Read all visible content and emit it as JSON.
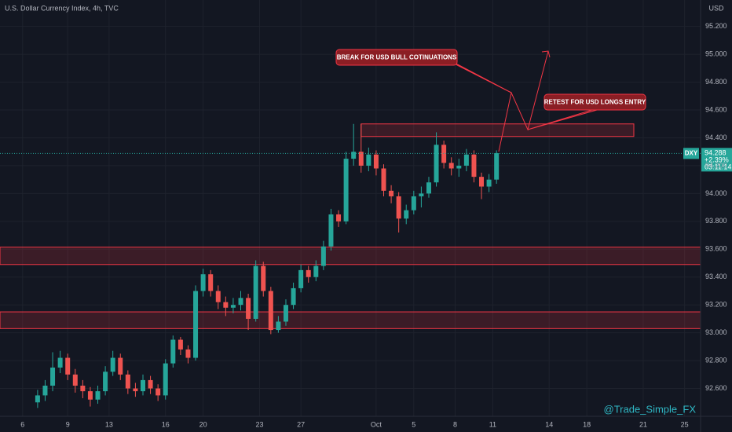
{
  "chart_data": {
    "type": "candlestick",
    "title": "U.S. Dollar Currency Index, 4h, TVC",
    "currency": "USD",
    "symbol": "DXY",
    "last_price": {
      "value": 94.288,
      "label": "94.288"
    },
    "change_label": "+2.39%",
    "countdown": "03:11:14",
    "watermark": "@Trade_Simple_FX",
    "up_color": "#26a69a",
    "down_color": "#ef5350",
    "zone_color": "#f23645",
    "grid": true,
    "ylim": [
      92.4,
      95.39
    ],
    "xlim": [
      0,
      186.25
    ],
    "yticks": [
      {
        "value": 95.2,
        "label": "95.200"
      },
      {
        "value": 95.0,
        "label": "95.000"
      },
      {
        "value": 94.8,
        "label": "94.800"
      },
      {
        "value": 94.6,
        "label": "94.600"
      },
      {
        "value": 94.4,
        "label": "94.400"
      },
      {
        "value": 94.2,
        "label": "94.200"
      },
      {
        "value": 94.0,
        "label": "94.000"
      },
      {
        "value": 93.8,
        "label": "93.800"
      },
      {
        "value": 93.6,
        "label": "93.600"
      },
      {
        "value": 93.4,
        "label": "93.400"
      },
      {
        "value": 93.2,
        "label": "93.200"
      },
      {
        "value": 93.0,
        "label": "93.000"
      },
      {
        "value": 92.8,
        "label": "92.800"
      },
      {
        "value": 92.6,
        "label": "92.600"
      }
    ],
    "xticks": [
      {
        "value": 6,
        "label": "6"
      },
      {
        "value": 18,
        "label": "9"
      },
      {
        "value": 29,
        "label": "13"
      },
      {
        "value": 44,
        "label": "16"
      },
      {
        "value": 54,
        "label": "20"
      },
      {
        "value": 69,
        "label": "23"
      },
      {
        "value": 80,
        "label": "27"
      },
      {
        "value": 100,
        "label": "Oct"
      },
      {
        "value": 110,
        "label": "5"
      },
      {
        "value": 121,
        "label": "8"
      },
      {
        "value": 131,
        "label": "11"
      },
      {
        "value": 146,
        "label": "14"
      },
      {
        "value": 156,
        "label": "18"
      },
      {
        "value": 171,
        "label": "21"
      },
      {
        "value": 182,
        "label": "25"
      }
    ],
    "x": [
      10,
      12,
      14,
      16,
      18,
      20,
      22,
      24,
      26,
      28,
      30,
      32,
      34,
      36,
      38,
      40,
      42,
      44,
      46,
      48,
      50,
      52,
      54,
      56,
      58,
      60,
      62,
      64,
      66,
      68,
      70,
      72,
      74,
      76,
      78,
      80,
      82,
      84,
      86,
      88,
      90,
      92,
      94,
      96,
      98,
      100,
      102,
      104,
      106,
      108,
      110,
      112,
      114,
      116,
      118,
      120,
      122,
      124,
      126,
      128,
      130,
      132
    ],
    "ohlc": [
      [
        92.5,
        92.59,
        92.46,
        92.55
      ],
      [
        92.55,
        92.66,
        92.51,
        92.62
      ],
      [
        92.62,
        92.86,
        92.58,
        92.75
      ],
      [
        92.75,
        92.87,
        92.71,
        92.82
      ],
      [
        92.82,
        92.85,
        92.66,
        92.7
      ],
      [
        92.7,
        92.74,
        92.57,
        92.62
      ],
      [
        92.62,
        92.66,
        92.53,
        92.58
      ],
      [
        92.58,
        92.61,
        92.47,
        92.52
      ],
      [
        92.52,
        92.62,
        92.49,
        92.58
      ],
      [
        92.58,
        92.76,
        92.55,
        92.72
      ],
      [
        92.72,
        92.87,
        92.69,
        92.82
      ],
      [
        92.82,
        92.85,
        92.66,
        92.7
      ],
      [
        92.7,
        92.73,
        92.56,
        92.6
      ],
      [
        92.6,
        92.64,
        92.54,
        92.58
      ],
      [
        92.58,
        92.7,
        92.55,
        92.66
      ],
      [
        92.66,
        92.69,
        92.56,
        92.6
      ],
      [
        92.6,
        92.63,
        92.51,
        92.55
      ],
      [
        92.55,
        92.81,
        92.52,
        92.78
      ],
      [
        92.78,
        92.98,
        92.75,
        92.95
      ],
      [
        92.95,
        92.97,
        92.84,
        92.88
      ],
      [
        92.88,
        92.91,
        92.78,
        92.82
      ],
      [
        92.82,
        93.34,
        92.8,
        93.3
      ],
      [
        93.3,
        93.46,
        93.26,
        93.42
      ],
      [
        93.42,
        93.45,
        93.26,
        93.3
      ],
      [
        93.3,
        93.34,
        93.17,
        93.22
      ],
      [
        93.22,
        93.26,
        93.12,
        93.18
      ],
      [
        93.18,
        93.25,
        93.14,
        93.2
      ],
      [
        93.2,
        93.3,
        93.16,
        93.25
      ],
      [
        93.25,
        93.28,
        93.02,
        93.1
      ],
      [
        93.1,
        93.52,
        93.08,
        93.48
      ],
      [
        93.48,
        93.51,
        93.26,
        93.3
      ],
      [
        93.3,
        93.33,
        92.99,
        93.02
      ],
      [
        93.02,
        93.12,
        93.0,
        93.08
      ],
      [
        93.08,
        93.24,
        93.05,
        93.2
      ],
      [
        93.2,
        93.36,
        93.17,
        93.32
      ],
      [
        93.32,
        93.49,
        93.29,
        93.45
      ],
      [
        93.45,
        93.48,
        93.36,
        93.4
      ],
      [
        93.4,
        93.52,
        93.37,
        93.48
      ],
      [
        93.48,
        93.66,
        93.45,
        93.62
      ],
      [
        93.62,
        93.89,
        93.59,
        93.85
      ],
      [
        93.85,
        93.88,
        93.76,
        93.8
      ],
      [
        93.8,
        94.3,
        93.78,
        94.25
      ],
      [
        94.25,
        94.5,
        94.2,
        94.3
      ],
      [
        94.3,
        94.5,
        94.15,
        94.2
      ],
      [
        94.2,
        94.33,
        94.16,
        94.28
      ],
      [
        94.28,
        94.31,
        94.13,
        94.18
      ],
      [
        94.18,
        94.21,
        93.98,
        94.02
      ],
      [
        94.02,
        94.06,
        93.93,
        93.98
      ],
      [
        93.98,
        94.01,
        93.72,
        93.82
      ],
      [
        93.82,
        93.92,
        93.78,
        93.88
      ],
      [
        93.88,
        94.02,
        93.85,
        93.98
      ],
      [
        93.98,
        94.05,
        93.9,
        94.0
      ],
      [
        94.0,
        94.12,
        93.97,
        94.08
      ],
      [
        94.08,
        94.44,
        94.05,
        94.35
      ],
      [
        94.35,
        94.38,
        94.18,
        94.22
      ],
      [
        94.22,
        94.26,
        94.13,
        94.18
      ],
      [
        94.18,
        94.25,
        94.12,
        94.2
      ],
      [
        94.2,
        94.32,
        94.16,
        94.28
      ],
      [
        94.28,
        94.31,
        94.08,
        94.12
      ],
      [
        94.12,
        94.15,
        93.96,
        94.05
      ],
      [
        94.05,
        94.14,
        94.01,
        94.1
      ],
      [
        94.1,
        94.31,
        94.07,
        94.29
      ]
    ],
    "zones": [
      {
        "y": [
          94.41,
          94.5
        ],
        "x": [
          96,
          168.5
        ]
      },
      {
        "y": [
          93.49,
          93.615
        ]
      },
      {
        "y": [
          93.03,
          93.15
        ]
      }
    ],
    "annotations": [
      {
        "text": "BREAK FOR USD BULL COTINUATIONS"
      },
      {
        "text": "RETEST FOR USD LONGS ENTRY"
      }
    ]
  }
}
